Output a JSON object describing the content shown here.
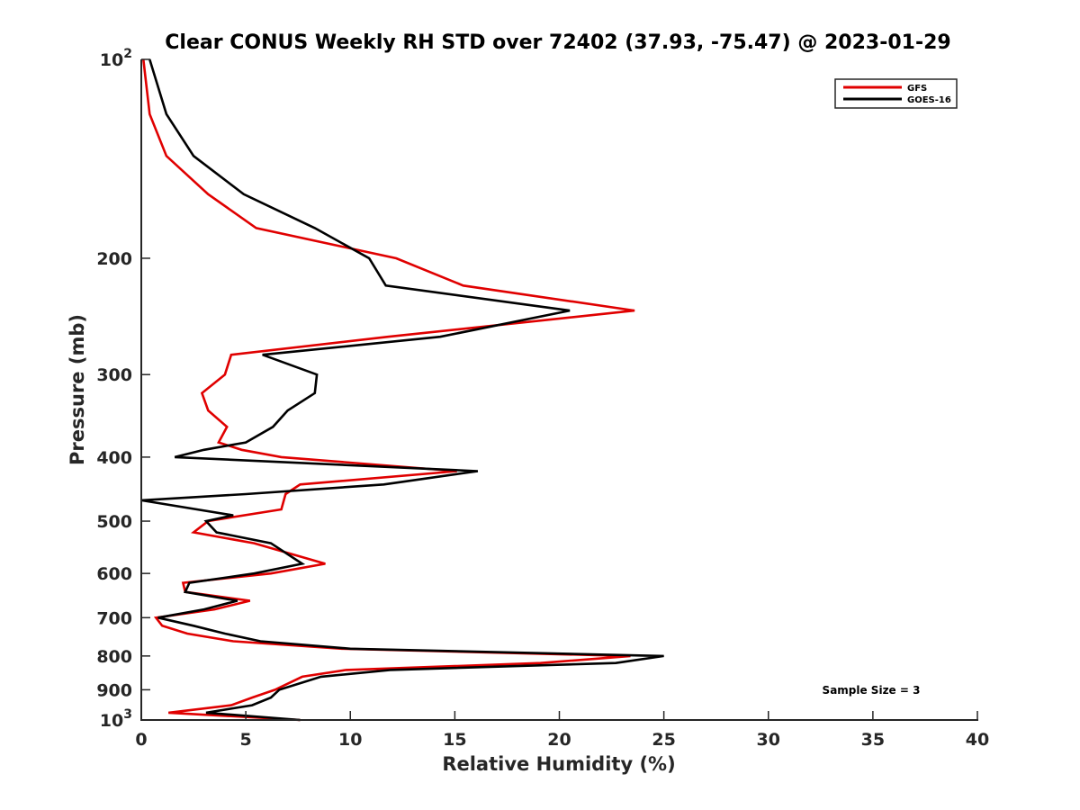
{
  "chart_data": {
    "type": "line",
    "title": "Clear CONUS Weekly RH STD over 72402 (37.93, -75.47) @ 2023-01-29",
    "xlabel": "Relative Humidity (%)",
    "ylabel": "Pressure (mb)",
    "xlim": [
      0,
      40
    ],
    "ylim": [
      100,
      1000
    ],
    "yscale": "log",
    "yreversed": true,
    "grid": false,
    "x_ticks": [
      0,
      5,
      10,
      15,
      20,
      25,
      30,
      35,
      40
    ],
    "x_tick_labels": [
      "0",
      "5",
      "10",
      "15",
      "20",
      "25",
      "30",
      "35",
      "40"
    ],
    "y_ticks": [
      100,
      200,
      300,
      400,
      500,
      600,
      700,
      800,
      900,
      1000
    ],
    "y_tick_labels": [
      "10^2",
      "200",
      "300",
      "400",
      "500",
      "600",
      "700",
      "800",
      "900",
      "10^3"
    ],
    "legend": {
      "placement": "top-right",
      "entries": [
        "GFS",
        "GOES-16"
      ]
    },
    "annotations": [
      {
        "text": "Sample Size = 3",
        "placement": "bottom-right"
      }
    ],
    "series": [
      {
        "name": "GFS",
        "color": "#e00000",
        "points": [
          [
            0.1,
            100
          ],
          [
            0.4,
            121
          ],
          [
            1.2,
            140
          ],
          [
            3.2,
            160
          ],
          [
            5.5,
            180
          ],
          [
            12.2,
            200
          ],
          [
            15.4,
            220
          ],
          [
            23.6,
            240
          ],
          [
            11.8,
            263
          ],
          [
            4.3,
            280
          ],
          [
            4.0,
            300
          ],
          [
            2.9,
            320
          ],
          [
            3.2,
            340
          ],
          [
            4.1,
            360
          ],
          [
            3.7,
            380
          ],
          [
            4.8,
            390
          ],
          [
            6.7,
            400
          ],
          [
            15.1,
            420
          ],
          [
            7.6,
            440
          ],
          [
            6.9,
            455
          ],
          [
            6.7,
            480
          ],
          [
            3.2,
            500
          ],
          [
            2.5,
            520
          ],
          [
            5.4,
            540
          ],
          [
            8.8,
            580
          ],
          [
            6.2,
            600
          ],
          [
            2.0,
            620
          ],
          [
            2.1,
            640
          ],
          [
            5.2,
            660
          ],
          [
            3.5,
            680
          ],
          [
            0.7,
            700
          ],
          [
            1.0,
            720
          ],
          [
            2.2,
            740
          ],
          [
            4.4,
            760
          ],
          [
            9.6,
            780
          ],
          [
            23.4,
            800
          ],
          [
            19.1,
            820
          ],
          [
            9.8,
            840
          ],
          [
            7.7,
            860
          ],
          [
            6.4,
            900
          ],
          [
            5.3,
            925
          ],
          [
            4.3,
            950
          ],
          [
            1.3,
            975
          ],
          [
            7.6,
            1000
          ]
        ]
      },
      {
        "name": "GOES-16",
        "color": "#000000",
        "points": [
          [
            0.4,
            100
          ],
          [
            1.2,
            121
          ],
          [
            2.5,
            140
          ],
          [
            4.9,
            160
          ],
          [
            8.3,
            180
          ],
          [
            10.9,
            200
          ],
          [
            11.7,
            220
          ],
          [
            20.5,
            240
          ],
          [
            14.3,
            263
          ],
          [
            5.8,
            280
          ],
          [
            8.4,
            300
          ],
          [
            8.3,
            320
          ],
          [
            7.0,
            340
          ],
          [
            6.3,
            360
          ],
          [
            5.0,
            380
          ],
          [
            3.0,
            390
          ],
          [
            1.6,
            400
          ],
          [
            16.1,
            420
          ],
          [
            11.6,
            440
          ],
          [
            5.0,
            455
          ],
          [
            0.0,
            465
          ],
          [
            4.4,
            490
          ],
          [
            3.1,
            500
          ],
          [
            3.6,
            520
          ],
          [
            6.2,
            540
          ],
          [
            7.7,
            580
          ],
          [
            5.4,
            600
          ],
          [
            2.3,
            620
          ],
          [
            2.1,
            640
          ],
          [
            4.6,
            660
          ],
          [
            3.0,
            680
          ],
          [
            0.8,
            700
          ],
          [
            2.5,
            720
          ],
          [
            4.0,
            740
          ],
          [
            5.7,
            760
          ],
          [
            10.0,
            780
          ],
          [
            25.0,
            800
          ],
          [
            22.7,
            820
          ],
          [
            11.9,
            840
          ],
          [
            8.6,
            860
          ],
          [
            6.6,
            900
          ],
          [
            6.2,
            925
          ],
          [
            5.3,
            950
          ],
          [
            3.1,
            975
          ],
          [
            7.6,
            1000
          ]
        ]
      }
    ]
  }
}
